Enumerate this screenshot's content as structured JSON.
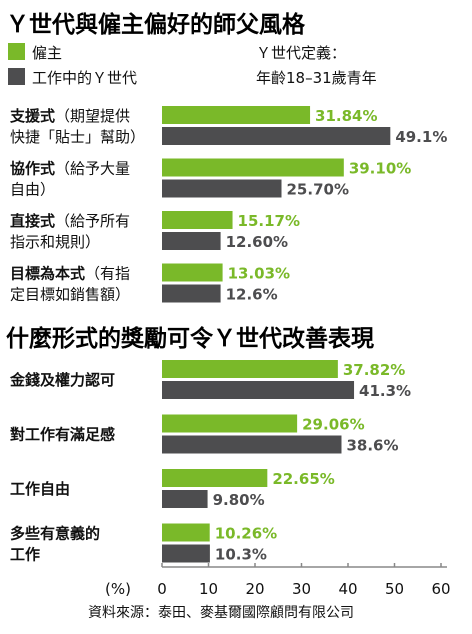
{
  "colors": {
    "green": "#7ab929",
    "gray": "#4d4d4f",
    "axis": "#888888"
  },
  "legend": {
    "employer": "僱主",
    "gen_y": "工作中的Ｙ世代",
    "definition_label": "Ｙ世代定義：",
    "definition_value": "年齡18–31歲青年"
  },
  "source": "資料來源：泰田、麥基爾國際顧問有限公司",
  "chart_data": [
    {
      "type": "bar",
      "title": "Ｙ世代與僱主偏好的師父風格",
      "categories": [
        {
          "bold": "支援式",
          "rest": "（期望提供",
          "line2": "快捷「貼士」幫助）"
        },
        {
          "bold": "協作式",
          "rest": "（給予大量",
          "line2": "自由）"
        },
        {
          "bold": "直接式",
          "rest": "（給予所有",
          "line2": "指示和規則）"
        },
        {
          "bold": "目標為本式",
          "rest": "（有指",
          "line2": "定目標如銷售額）"
        }
      ],
      "series": [
        {
          "name": "僱主",
          "values": [
            31.84,
            39.1,
            15.17,
            13.03
          ],
          "labels": [
            "31.84%",
            "39.10%",
            "15.17%",
            "13.03%"
          ]
        },
        {
          "name": "工作中的Ｙ世代",
          "values": [
            49.1,
            25.7,
            12.6,
            12.6
          ],
          "labels": [
            "49.1%",
            "25.70%",
            "12.60%",
            "12.6%"
          ]
        }
      ]
    },
    {
      "type": "bar",
      "title": "什麼形式的獎勵可令Ｙ世代改善表現",
      "categories": [
        {
          "bold": "金錢及權力認可",
          "rest": "",
          "line2": ""
        },
        {
          "bold": "對工作有滿足感",
          "rest": "",
          "line2": ""
        },
        {
          "bold": "工作自由",
          "rest": "",
          "line2": ""
        },
        {
          "bold": "多些有意義的",
          "rest": "",
          "line2": "工作"
        }
      ],
      "series": [
        {
          "name": "僱主",
          "values": [
            37.82,
            29.06,
            22.65,
            10.26
          ],
          "labels": [
            "37.82%",
            "29.06%",
            "22.65%",
            "10.26%"
          ]
        },
        {
          "name": "工作中的Ｙ世代",
          "values": [
            41.3,
            38.6,
            9.8,
            10.3
          ],
          "labels": [
            "41.3%",
            "38.6%",
            "9.80%",
            "10.3%"
          ]
        }
      ]
    }
  ],
  "axis": {
    "unit": "(%)",
    "ticks": [
      "0",
      "10",
      "20",
      "30",
      "40",
      "50",
      "60"
    ],
    "xlim": [
      0,
      60
    ]
  }
}
